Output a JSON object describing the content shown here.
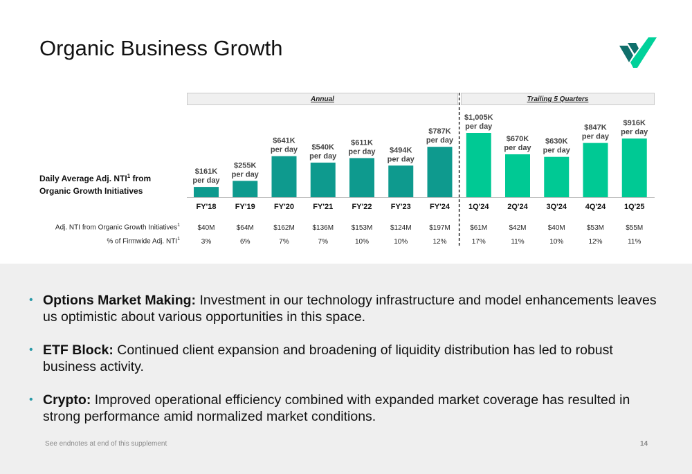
{
  "page": {
    "title": "Organic Business Growth",
    "footnote": "See endnotes at end of this supplement",
    "page_number": "14"
  },
  "colors": {
    "annual_bar": "#0e9a8e",
    "trailing_bar": "#00c994",
    "logo_dark": "#0f6f6b",
    "logo_light": "#00d19a",
    "bullet_dot": "#2a9aa8"
  },
  "row_label": {
    "line1": "Daily Average Adj. NTI",
    "sup": "1",
    "line1_suffix": " from",
    "line2": "Organic Growth Initiatives"
  },
  "table": {
    "row1_label": "Adj. NTI from Organic Growth Initiatives",
    "row1_sup": "1",
    "row2_label": "% of Firmwide Adj. NTI",
    "row2_sup": "1"
  },
  "chart_data": {
    "type": "bar",
    "groups": [
      {
        "label": "Annual",
        "categories": [
          "FY'18",
          "FY'19",
          "FY'20",
          "FY'21",
          "FY'22",
          "FY'23",
          "FY'24"
        ]
      },
      {
        "label": "Trailing 5 Quarters",
        "categories": [
          "1Q'24",
          "2Q'24",
          "3Q'24",
          "4Q'24",
          "1Q'25"
        ]
      }
    ],
    "categories": [
      "FY'18",
      "FY'19",
      "FY'20",
      "FY'21",
      "FY'22",
      "FY'23",
      "FY'24",
      "1Q'24",
      "2Q'24",
      "3Q'24",
      "4Q'24",
      "1Q'25"
    ],
    "values": [
      161,
      255,
      641,
      540,
      611,
      494,
      787,
      1005,
      670,
      630,
      847,
      916
    ],
    "value_labels": [
      "$161K",
      "$255K",
      "$641K",
      "$540K",
      "$611K",
      "$494K",
      "$787K",
      "$1,005K",
      "$670K",
      "$630K",
      "$847K",
      "$916K"
    ],
    "value_sublabel": "per day",
    "adj_nti": [
      "$40M",
      "$64M",
      "$162M",
      "$136M",
      "$153M",
      "$124M",
      "$197M",
      "$61M",
      "$42M",
      "$40M",
      "$53M",
      "$55M"
    ],
    "pct_firmwide": [
      "3%",
      "6%",
      "7%",
      "7%",
      "10%",
      "10%",
      "12%",
      "17%",
      "11%",
      "10%",
      "12%",
      "11%"
    ],
    "ylim": [
      0,
      1005
    ],
    "grid": false
  },
  "bullets": [
    {
      "head": "Options Market Making:",
      "text": " Investment in our technology infrastructure and model enhancements leaves us optimistic about various opportunities in this space."
    },
    {
      "head": "ETF Block:",
      "text": " Continued client expansion and broadening of liquidity distribution has led to robust business activity."
    },
    {
      "head": "Crypto:",
      "text": " Improved operational efficiency combined with expanded market coverage has resulted in strong performance amid normalized market conditions."
    }
  ]
}
